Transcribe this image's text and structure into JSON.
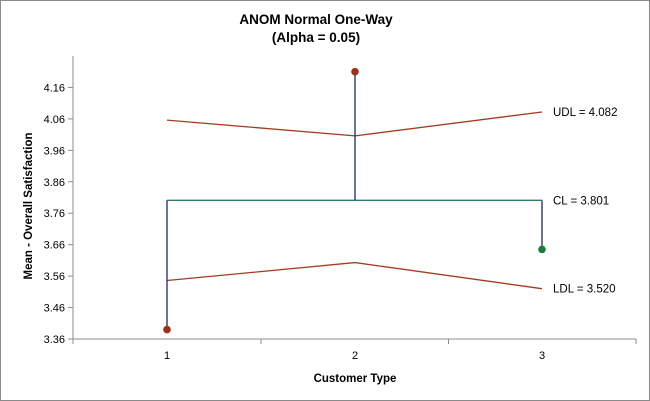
{
  "chart_data": {
    "type": "line",
    "title": "ANOM Normal One-Way",
    "subtitle": "(Alpha = 0.05)",
    "xlabel": "Customer Type",
    "ylabel": "Mean - Overall Satisfaction",
    "categories": [
      "1",
      "2",
      "3"
    ],
    "ylim": [
      3.36,
      4.26
    ],
    "yticks": [
      "3.36",
      "3.46",
      "3.56",
      "3.66",
      "3.76",
      "3.86",
      "3.96",
      "4.06",
      "4.16"
    ],
    "means": {
      "values": [
        3.39,
        4.21,
        3.645
      ],
      "out_of_limits_color": "#a0301a",
      "in_limits_color": "#1e7b3a",
      "status": [
        "below",
        "above",
        "within"
      ]
    },
    "center_line": {
      "value": 3.801,
      "label": "CL = 3.801",
      "color": "#2f7f6f"
    },
    "upper_limits": {
      "values": [
        4.056,
        4.006,
        4.082
      ],
      "label": "UDL = 4.082",
      "color": "#a13d1d"
    },
    "lower_limits": {
      "values": [
        3.546,
        3.603,
        3.52
      ],
      "label": "LDL = 3.520",
      "color": "#a13d1d"
    },
    "stem_color": "#1b2a6b",
    "grid": false,
    "legend": "none"
  }
}
